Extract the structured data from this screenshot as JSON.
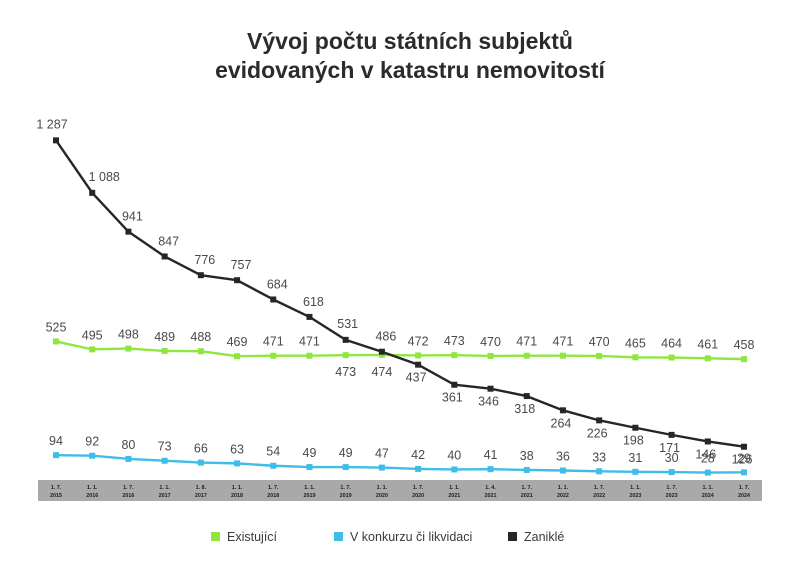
{
  "chart_data": {
    "type": "line",
    "title": "Vývoj počtu státních subjektů",
    "subtitle": "evidovaných v katastru nemovitostí",
    "categories": [
      [
        "1. 7.",
        "2015"
      ],
      [
        "1. 1.",
        "2016"
      ],
      [
        "1. 7.",
        "2016"
      ],
      [
        "1. 1.",
        "2017"
      ],
      [
        "1. 8.",
        "2017"
      ],
      [
        "1. 1.",
        "2018"
      ],
      [
        "1. 7.",
        "2018"
      ],
      [
        "1. 1.",
        "2019"
      ],
      [
        "1. 7.",
        "2019"
      ],
      [
        "1. 1.",
        "2020"
      ],
      [
        "1. 7.",
        "2020"
      ],
      [
        "1. 1.",
        "2021"
      ],
      [
        "1. 4.",
        "2021"
      ],
      [
        "1. 7.",
        "2021"
      ],
      [
        "1. 1.",
        "2022"
      ],
      [
        "1. 7.",
        "2022"
      ],
      [
        "1. 1.",
        "2023"
      ],
      [
        "1. 7.",
        "2023"
      ],
      [
        "1. 1.",
        "2024"
      ],
      [
        "1. 7.",
        "2024"
      ]
    ],
    "ylim": [
      0,
      1300
    ],
    "grid": false,
    "legend_position": "bottom",
    "series": [
      {
        "name": "Existující",
        "color": "#8ee63e",
        "label_side": "above",
        "labels": [
          "525",
          "495",
          "498",
          "489",
          "488",
          "469",
          "471",
          "471",
          "473",
          "474",
          "472",
          "473",
          "470",
          "471",
          "471",
          "470",
          "465",
          "464",
          "461",
          "458"
        ],
        "values": [
          525,
          495,
          498,
          489,
          488,
          469,
          471,
          471,
          473,
          474,
          472,
          473,
          470,
          471,
          471,
          470,
          465,
          464,
          461,
          458
        ]
      },
      {
        "name": "V konkurzu či likvidaci",
        "color": "#3dbde8",
        "label_side": "above",
        "labels": [
          "94",
          "92",
          "80",
          "73",
          "66",
          "63",
          "54",
          "49",
          "49",
          "47",
          "42",
          "40",
          "41",
          "38",
          "36",
          "33",
          "31",
          "30",
          "28",
          "29"
        ],
        "values": [
          94,
          92,
          80,
          73,
          66,
          63,
          54,
          49,
          49,
          47,
          42,
          40,
          41,
          38,
          36,
          33,
          31,
          30,
          28,
          29
        ]
      },
      {
        "name": "Zaniklé",
        "color": "#262626",
        "labels": [
          "1 287",
          "1 088",
          "941",
          "847",
          "776",
          "757",
          "684",
          "618",
          "531",
          "486",
          "437",
          "361",
          "346",
          "318",
          "264",
          "226",
          "198",
          "171",
          "146",
          "126"
        ],
        "values": [
          1287,
          1088,
          941,
          847,
          776,
          757,
          684,
          618,
          531,
          486,
          437,
          361,
          346,
          318,
          264,
          226,
          198,
          171,
          146,
          126
        ]
      }
    ]
  }
}
